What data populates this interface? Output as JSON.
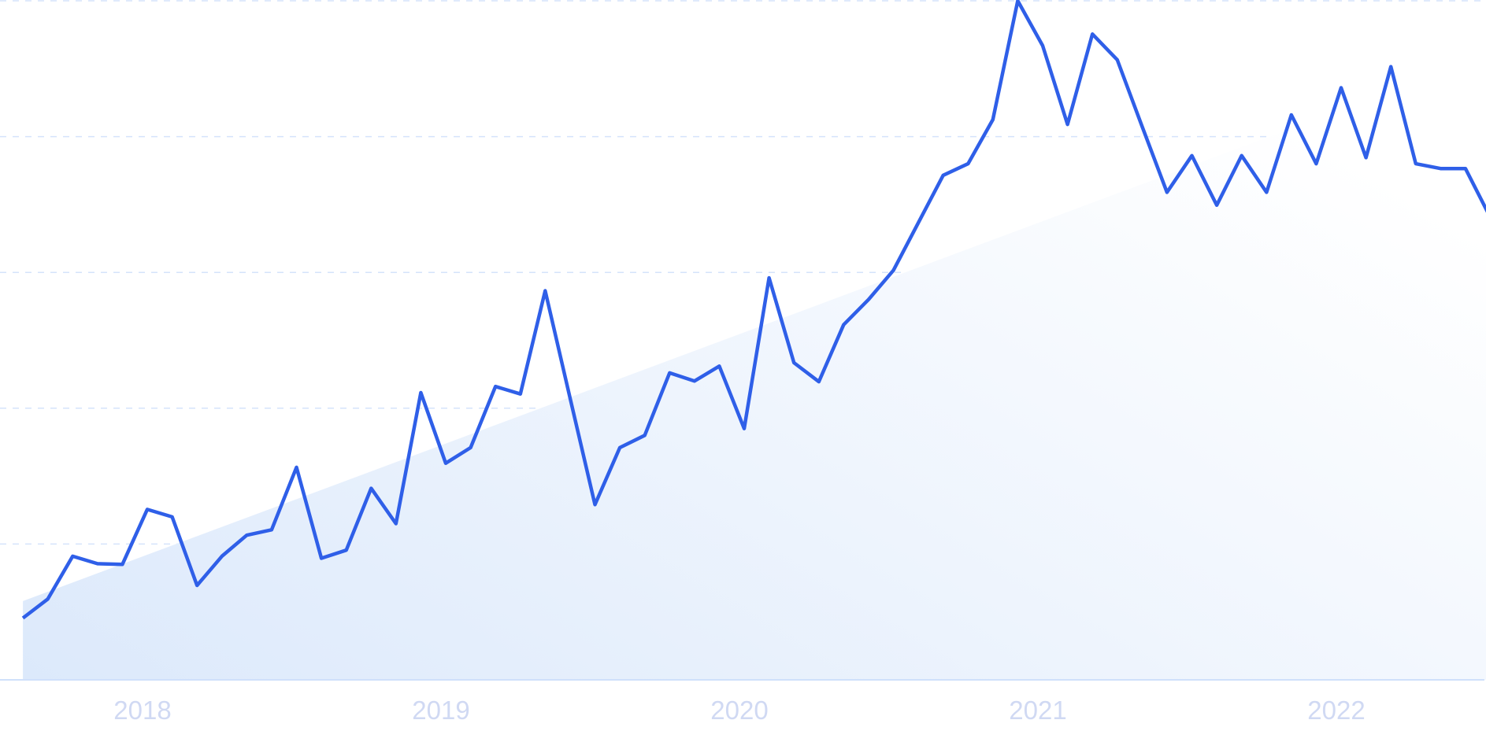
{
  "chart_data": {
    "type": "line",
    "title": "",
    "xlabel": "",
    "ylabel": "",
    "ylim": [
      0,
      100
    ],
    "y_gridlines": [
      20,
      40,
      60,
      80,
      100
    ],
    "grid": "horizontal dashed",
    "y_tick_labels_shown": false,
    "x_tick_labels": [
      "2018",
      "2019",
      "2020",
      "2021",
      "2022"
    ],
    "x": [
      "2017-08",
      "2017-09",
      "2017-10",
      "2017-11",
      "2017-12",
      "2018-01",
      "2018-02",
      "2018-03",
      "2018-04",
      "2018-05",
      "2018-06",
      "2018-07",
      "2018-08",
      "2018-09",
      "2018-10",
      "2018-11",
      "2018-12",
      "2019-01",
      "2019-02",
      "2019-03",
      "2019-04",
      "2019-05",
      "2019-06",
      "2019-07",
      "2019-08",
      "2019-09",
      "2019-10",
      "2019-11",
      "2019-12",
      "2020-01",
      "2020-02",
      "2020-03",
      "2020-04",
      "2020-05",
      "2020-06",
      "2020-07",
      "2020-08",
      "2020-09",
      "2020-10",
      "2020-11",
      "2020-12",
      "2021-01",
      "2021-02",
      "2021-03",
      "2021-04",
      "2021-05",
      "2021-06",
      "2021-07",
      "2021-08",
      "2021-09",
      "2021-10",
      "2021-11",
      "2021-12",
      "2022-01",
      "2022-02",
      "2022-03",
      "2022-04",
      "2022-05",
      "2022-06",
      "2022-07"
    ],
    "series": [
      {
        "values": [
          9.1,
          11.9,
          18.2,
          17.1,
          17.0,
          25.1,
          24.0,
          13.9,
          18.2,
          21.3,
          22.1,
          31.3,
          17.9,
          19.1,
          28.2,
          23.0,
          42.3,
          31.9,
          34.2,
          43.2,
          42.1,
          57.3,
          41.5,
          25.8,
          34.2,
          36.0,
          45.2,
          44.0,
          46.2,
          37.0,
          59.2,
          46.7,
          43.9,
          52.3,
          56.0,
          60.3,
          67.3,
          74.3,
          76.0,
          82.5,
          100.0,
          93.4,
          81.8,
          95.1,
          91.3,
          81.5,
          71.8,
          77.2,
          69.9,
          77.2,
          71.8,
          83.2,
          76.0,
          87.2,
          76.9,
          90.3,
          76.0,
          75.3,
          75.3,
          68.1
        ],
        "color": "#2f5fe8"
      }
    ],
    "trend": {
      "type": "linear area",
      "start": {
        "x": "2017-08",
        "y": 11.6
      },
      "end": {
        "x": "2022-07",
        "y": 92.1
      },
      "fill_from": "#dce9fb",
      "fill_to": "#ffffff"
    },
    "colors": {
      "gridline": "#d5e3fb",
      "baseline": "#cfe0fb",
      "tick_label": "#d0d9f3"
    }
  }
}
